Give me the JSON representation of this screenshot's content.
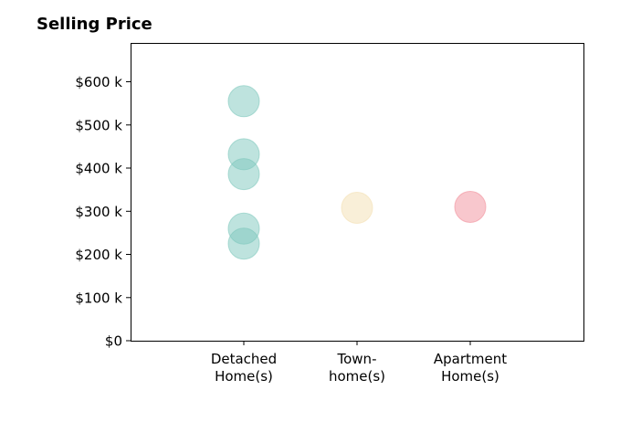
{
  "chart_data": {
    "type": "scatter",
    "title": "Selling Price",
    "categories": [
      {
        "lines": [
          "Detached",
          "Home(s)"
        ],
        "color": "#7ec8bd"
      },
      {
        "lines": [
          "Town-",
          "home(s)"
        ],
        "color": "#f3dfb2"
      },
      {
        "lines": [
          "Apartment",
          "Home(s)"
        ],
        "color": "#f28f9b"
      }
    ],
    "points": [
      {
        "category": 0,
        "value": 555000
      },
      {
        "category": 0,
        "value": 432000
      },
      {
        "category": 0,
        "value": 386000
      },
      {
        "category": 0,
        "value": 260000
      },
      {
        "category": 0,
        "value": 225000
      },
      {
        "category": 1,
        "value": 308000
      },
      {
        "category": 2,
        "value": 310000
      }
    ],
    "ylim": [
      0,
      690000
    ],
    "y_ticks": [
      {
        "value": 0,
        "label": "$0"
      },
      {
        "value": 100000,
        "label": "$100 k"
      },
      {
        "value": 200000,
        "label": "$200 k"
      },
      {
        "value": 300000,
        "label": "$300 k"
      },
      {
        "value": 400000,
        "label": "$400 k"
      },
      {
        "value": 500000,
        "label": "$500 k"
      },
      {
        "value": 600000,
        "label": "$600 k"
      }
    ],
    "xlabel": "",
    "ylabel": "",
    "grid": false,
    "legend": "none"
  }
}
